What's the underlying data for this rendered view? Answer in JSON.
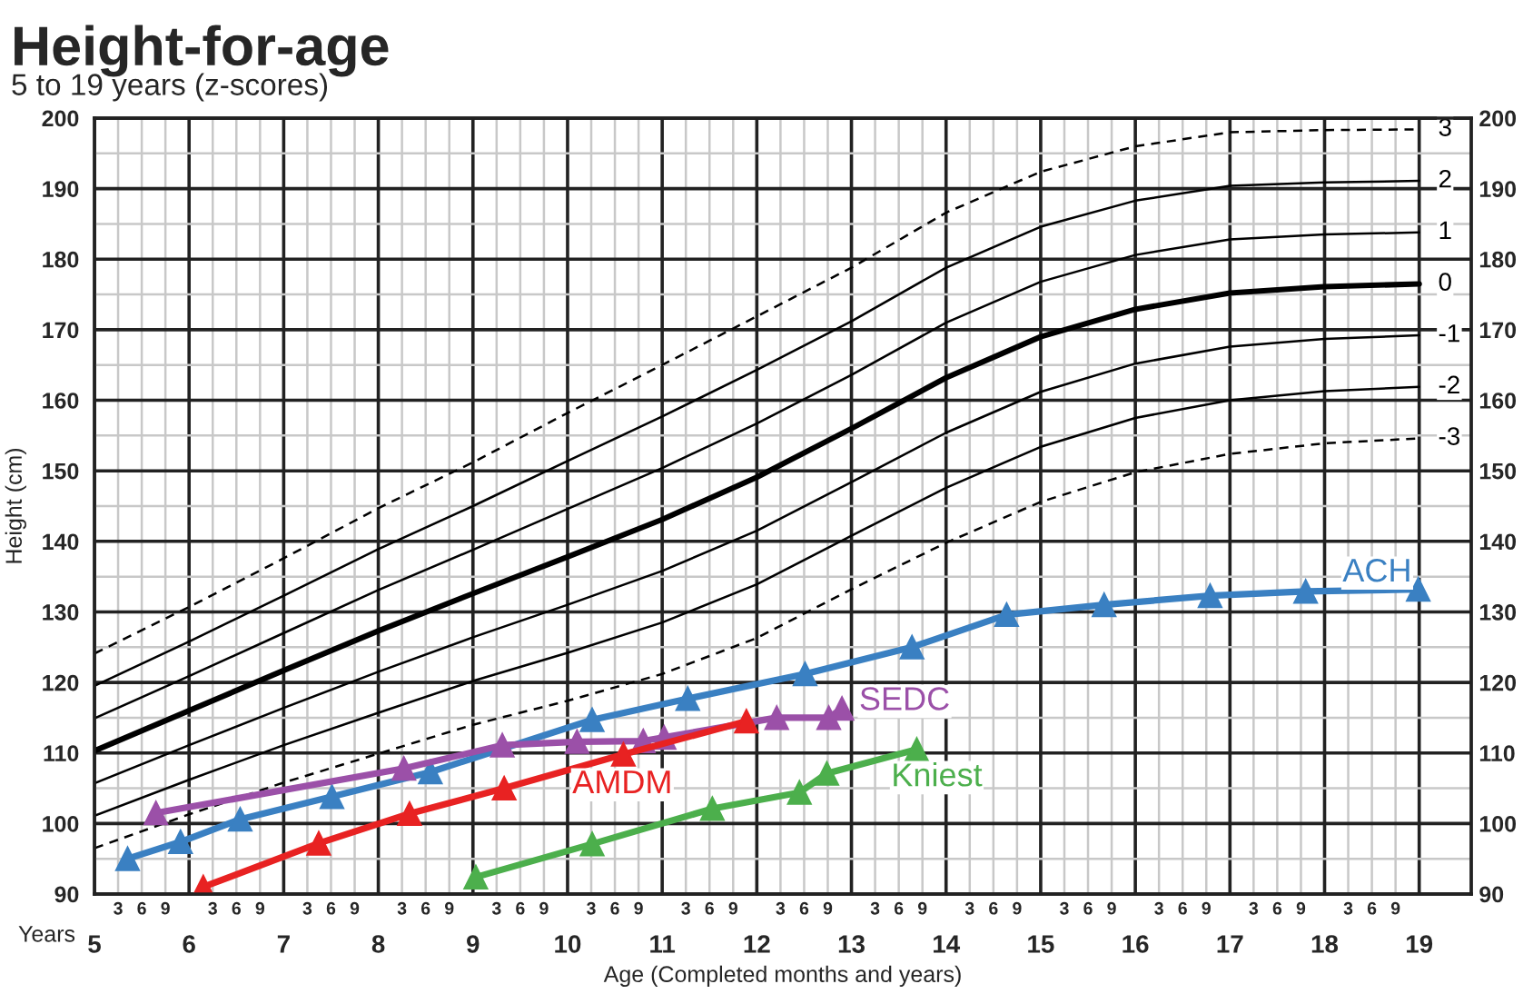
{
  "chart_data": {
    "type": "line",
    "title": "Height-for-age",
    "subtitle": "5 to 19 years (z-scores)",
    "xlabel": "Age (Completed months and years)",
    "ylabel": "Height (cm)",
    "annotations": [
      "Years",
      "3",
      "6",
      "9",
      "3",
      "6",
      "9",
      "3",
      "6",
      "9",
      "3",
      "6",
      "9",
      "3",
      "6",
      "9",
      "3",
      "6",
      "9",
      "3",
      "6",
      "9",
      "3",
      "6",
      "9",
      "3",
      "6",
      "9",
      "3",
      "6",
      "9",
      "3",
      "6",
      "9",
      "3",
      "6",
      "9",
      "3",
      "6",
      "9",
      "3",
      "6",
      "9"
    ],
    "x": [
      5,
      6,
      7,
      8,
      9,
      10,
      11,
      12,
      13,
      14,
      15,
      16,
      17,
      18,
      19
    ],
    "series": [
      {
        "name": "3",
        "color": "#000000",
        "line_style": "dashed",
        "marker": "none",
        "values": [
          124.1,
          130.7,
          137.6,
          144.7,
          151.2,
          158.2,
          165.0,
          171.9,
          178.8,
          186.6,
          192.4,
          196.0,
          198.0,
          198.3,
          198.4
        ]
      },
      {
        "name": "2",
        "color": "#000000",
        "line_style": "solid",
        "marker": "none",
        "values": [
          119.5,
          125.8,
          132.3,
          138.9,
          145.0,
          151.4,
          157.7,
          164.3,
          171.2,
          178.8,
          184.6,
          188.3,
          190.4,
          190.9,
          191.1
        ]
      },
      {
        "name": "1",
        "color": "#000000",
        "line_style": "solid",
        "marker": "none",
        "values": [
          114.9,
          120.9,
          127.0,
          133.1,
          138.8,
          144.6,
          150.4,
          156.7,
          163.6,
          171.0,
          176.8,
          180.6,
          182.8,
          183.5,
          183.8
        ]
      },
      {
        "name": "0",
        "color": "#000000",
        "line_style": "solid",
        "marker": "none",
        "values": [
          110.3,
          116.0,
          121.7,
          127.3,
          132.6,
          137.8,
          143.1,
          149.1,
          156.0,
          163.2,
          169.0,
          172.9,
          175.2,
          176.1,
          176.5
        ]
      },
      {
        "name": "-1",
        "color": "#000000",
        "line_style": "solid",
        "marker": "none",
        "values": [
          105.7,
          111.1,
          116.4,
          121.5,
          126.4,
          131.0,
          135.8,
          141.5,
          148.4,
          155.4,
          161.2,
          165.2,
          167.6,
          168.7,
          169.2
        ]
      },
      {
        "name": "-2",
        "color": "#000000",
        "line_style": "solid",
        "marker": "none",
        "values": [
          101.1,
          106.2,
          111.1,
          115.7,
          120.2,
          124.2,
          128.5,
          133.9,
          140.8,
          147.6,
          153.4,
          157.5,
          160.0,
          161.3,
          161.9
        ]
      },
      {
        "name": "-3",
        "color": "#000000",
        "line_style": "dashed",
        "marker": "none",
        "values": [
          96.5,
          101.3,
          105.8,
          109.9,
          114.0,
          117.4,
          121.2,
          126.3,
          133.2,
          139.8,
          145.6,
          149.8,
          152.4,
          153.9,
          154.6
        ]
      },
      {
        "name": "ACH",
        "color": "#3a80c2",
        "line_style": "solid",
        "marker": "triangle",
        "x": [
          5.35,
          5.91,
          6.54,
          7.51,
          8.55,
          10.26,
          11.27,
          12.51,
          13.64,
          14.64,
          15.67,
          16.79,
          17.8,
          18.99
        ],
        "values": [
          95.0,
          97.4,
          100.6,
          103.8,
          107.3,
          114.7,
          117.7,
          121.2,
          125.0,
          129.6,
          131.0,
          132.3,
          132.9,
          133.2
        ]
      },
      {
        "name": "SEDC",
        "color": "#9b50a8",
        "line_style": "solid",
        "marker": "triangle",
        "x": [
          5.65,
          8.27,
          9.31,
          10.1,
          10.8,
          11.02,
          12.21,
          12.76,
          12.9
        ],
        "values": [
          101.5,
          107.8,
          111.1,
          111.6,
          111.7,
          112.2,
          115.0,
          115.0,
          116.3
        ]
      },
      {
        "name": "AMDM",
        "color": "#e82222",
        "line_style": "solid",
        "marker": "triangle",
        "x": [
          6.15,
          7.37,
          8.33,
          9.33,
          10.59,
          11.89
        ],
        "values": [
          91.0,
          97.2,
          101.4,
          105.0,
          109.8,
          114.5
        ]
      },
      {
        "name": "Kniest",
        "color": "#4caf4c",
        "line_style": "solid",
        "marker": "triangle",
        "x": [
          9.03,
          10.26,
          11.53,
          12.45,
          12.74,
          13.69
        ],
        "values": [
          92.4,
          97.1,
          102.1,
          104.4,
          107.1,
          110.5
        ]
      }
    ],
    "xlim": [
      5,
      19.55
    ],
    "xticks": [
      5,
      {
        "value": 5.25,
        "label": null
      },
      {
        "value": 5.5,
        "label": null
      },
      {
        "value": 5.75,
        "label": null
      },
      6,
      {
        "value": 6.25,
        "label": null
      },
      {
        "value": 6.5,
        "label": null
      },
      {
        "value": 6.75,
        "label": null
      },
      7,
      {
        "value": 7.25,
        "label": null
      },
      {
        "value": 7.5,
        "label": null
      },
      {
        "value": 7.75,
        "label": null
      },
      8,
      {
        "value": 8.25,
        "label": null
      },
      {
        "value": 8.5,
        "label": null
      },
      {
        "value": 8.75,
        "label": null
      },
      9,
      {
        "value": 9.25,
        "label": null
      },
      {
        "value": 9.5,
        "label": null
      },
      {
        "value": 9.75,
        "label": null
      },
      10,
      {
        "value": 10.25,
        "label": null
      },
      {
        "value": 10.5,
        "label": null
      },
      {
        "value": 10.75,
        "label": null
      },
      11,
      {
        "value": 11.25,
        "label": null
      },
      {
        "value": 11.5,
        "label": null
      },
      {
        "value": 11.75,
        "label": null
      },
      12,
      {
        "value": 12.25,
        "label": null
      },
      {
        "value": 12.5,
        "label": null
      },
      {
        "value": 12.75,
        "label": null
      },
      13,
      {
        "value": 13.25,
        "label": null
      },
      {
        "value": 13.5,
        "label": null
      },
      {
        "value": 13.75,
        "label": null
      },
      14,
      {
        "value": 14.25,
        "label": null
      },
      {
        "value": 14.5,
        "label": null
      },
      {
        "value": 14.75,
        "label": null
      },
      15,
      {
        "value": 15.25,
        "label": null
      },
      {
        "value": 15.5,
        "label": null
      },
      {
        "value": 15.75,
        "label": null
      },
      16,
      {
        "value": 16.25,
        "label": null
      },
      {
        "value": 16.5,
        "label": null
      },
      {
        "value": 16.75,
        "label": null
      },
      17,
      {
        "value": 17.25,
        "label": null
      },
      {
        "value": 17.5,
        "label": null
      },
      {
        "value": 17.75,
        "label": null
      },
      18,
      {
        "value": 18.25,
        "label": null
      },
      {
        "value": 18.5,
        "label": null
      },
      {
        "value": 18.75,
        "label": null
      },
      19
    ],
    "ylim": [
      90,
      200
    ],
    "yticks": [
      90,
      {
        "value": 95,
        "label": null
      },
      100,
      {
        "value": 105,
        "label": null
      },
      110,
      {
        "value": 115,
        "label": null
      },
      120,
      {
        "value": 125,
        "label": null
      },
      130,
      {
        "value": 135,
        "label": null
      },
      140,
      {
        "value": 145,
        "label": null
      },
      150,
      {
        "value": 155,
        "label": null
      },
      160,
      {
        "value": 165,
        "label": null
      },
      170,
      {
        "value": 175,
        "label": null
      },
      180,
      {
        "value": 185,
        "label": null
      },
      190,
      {
        "value": 195,
        "label": null
      },
      200
    ],
    "y2lim": [
      90,
      200
    ],
    "y2ticks": [
      90,
      100,
      110,
      120,
      130,
      140,
      150,
      160,
      170,
      180,
      190,
      200
    ],
    "grid": true,
    "legend": false
  }
}
